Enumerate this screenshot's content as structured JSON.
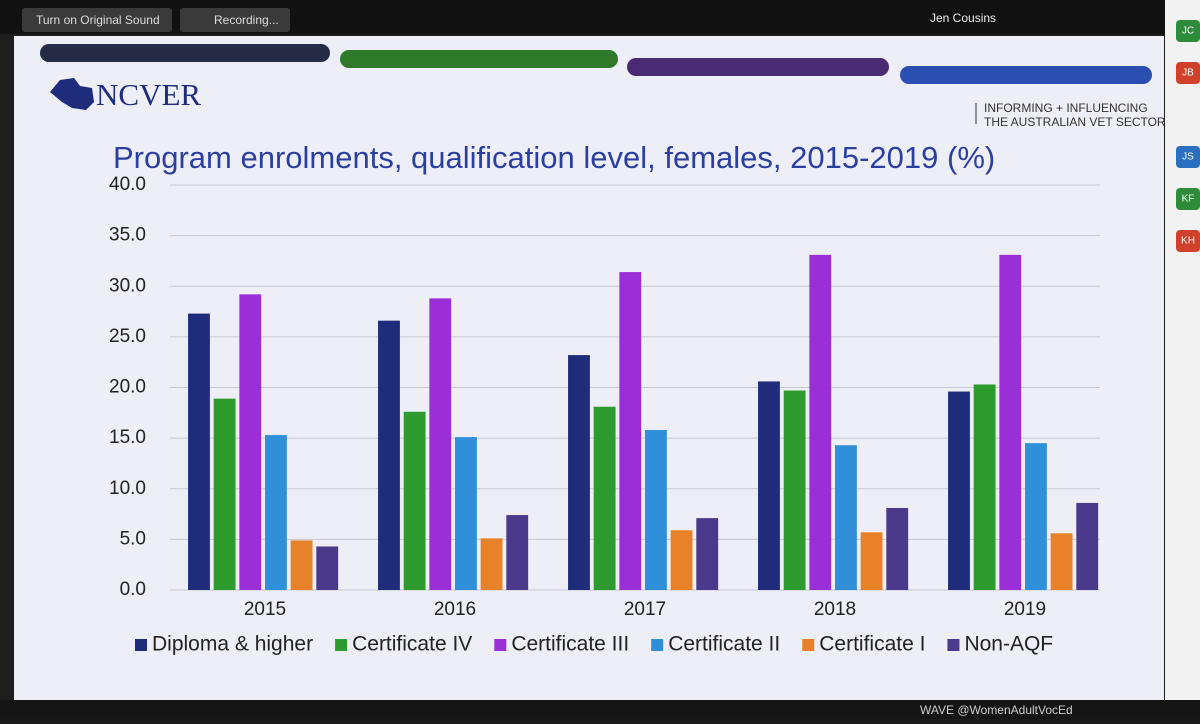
{
  "screen": {
    "topbar": [
      "Turn on Original Sound",
      "Recording...",
      "Jen Cousins"
    ],
    "participants": [
      "JC",
      "JB",
      "JS",
      "KF",
      "KH"
    ],
    "footer": "WAVE @WomenAdultVocEd",
    "logo": "NCVER",
    "tagline": [
      "INFORMING + INFLUENCING",
      "THE AUSTRALIAN VET SECTOR"
    ]
  },
  "chart_data": {
    "type": "bar",
    "title": "Program enrolments, qualification level, females, 2015-2019 (%)",
    "categories": [
      "2015",
      "2016",
      "2017",
      "2018",
      "2019"
    ],
    "series": [
      {
        "name": "Diploma & higher",
        "color": "#1f2c7c",
        "values": [
          27.3,
          26.6,
          23.2,
          20.6,
          19.6
        ]
      },
      {
        "name": "Certificate IV",
        "color": "#2e9b2f",
        "values": [
          18.9,
          17.6,
          18.1,
          19.7,
          20.3
        ]
      },
      {
        "name": "Certificate III",
        "color": "#9a2fd8",
        "values": [
          29.2,
          28.8,
          31.4,
          33.1,
          33.1
        ]
      },
      {
        "name": "Certificate II",
        "color": "#2f8fd8",
        "values": [
          15.3,
          15.1,
          15.8,
          14.3,
          14.5
        ]
      },
      {
        "name": "Certificate I",
        "color": "#e8822a",
        "values": [
          4.9,
          5.1,
          5.9,
          5.7,
          5.6
        ]
      },
      {
        "name": "Non-AQF",
        "color": "#4b3a8c",
        "values": [
          4.3,
          7.4,
          7.1,
          8.1,
          8.6
        ]
      }
    ],
    "ylim": [
      0,
      40
    ],
    "yticks": [
      {
        "value": 0,
        "label": "0.0"
      },
      {
        "value": 5,
        "label": "5.0"
      },
      {
        "value": 10,
        "label": "10.0"
      },
      {
        "value": 15,
        "label": "15.0"
      },
      {
        "value": 20,
        "label": "20.0"
      },
      {
        "value": 25,
        "label": "25.0"
      },
      {
        "value": 30,
        "label": "30.0"
      },
      {
        "value": 35,
        "label": "35.0"
      },
      {
        "value": 40,
        "label": "40.0"
      }
    ],
    "grid": true,
    "legend": "bottom"
  }
}
